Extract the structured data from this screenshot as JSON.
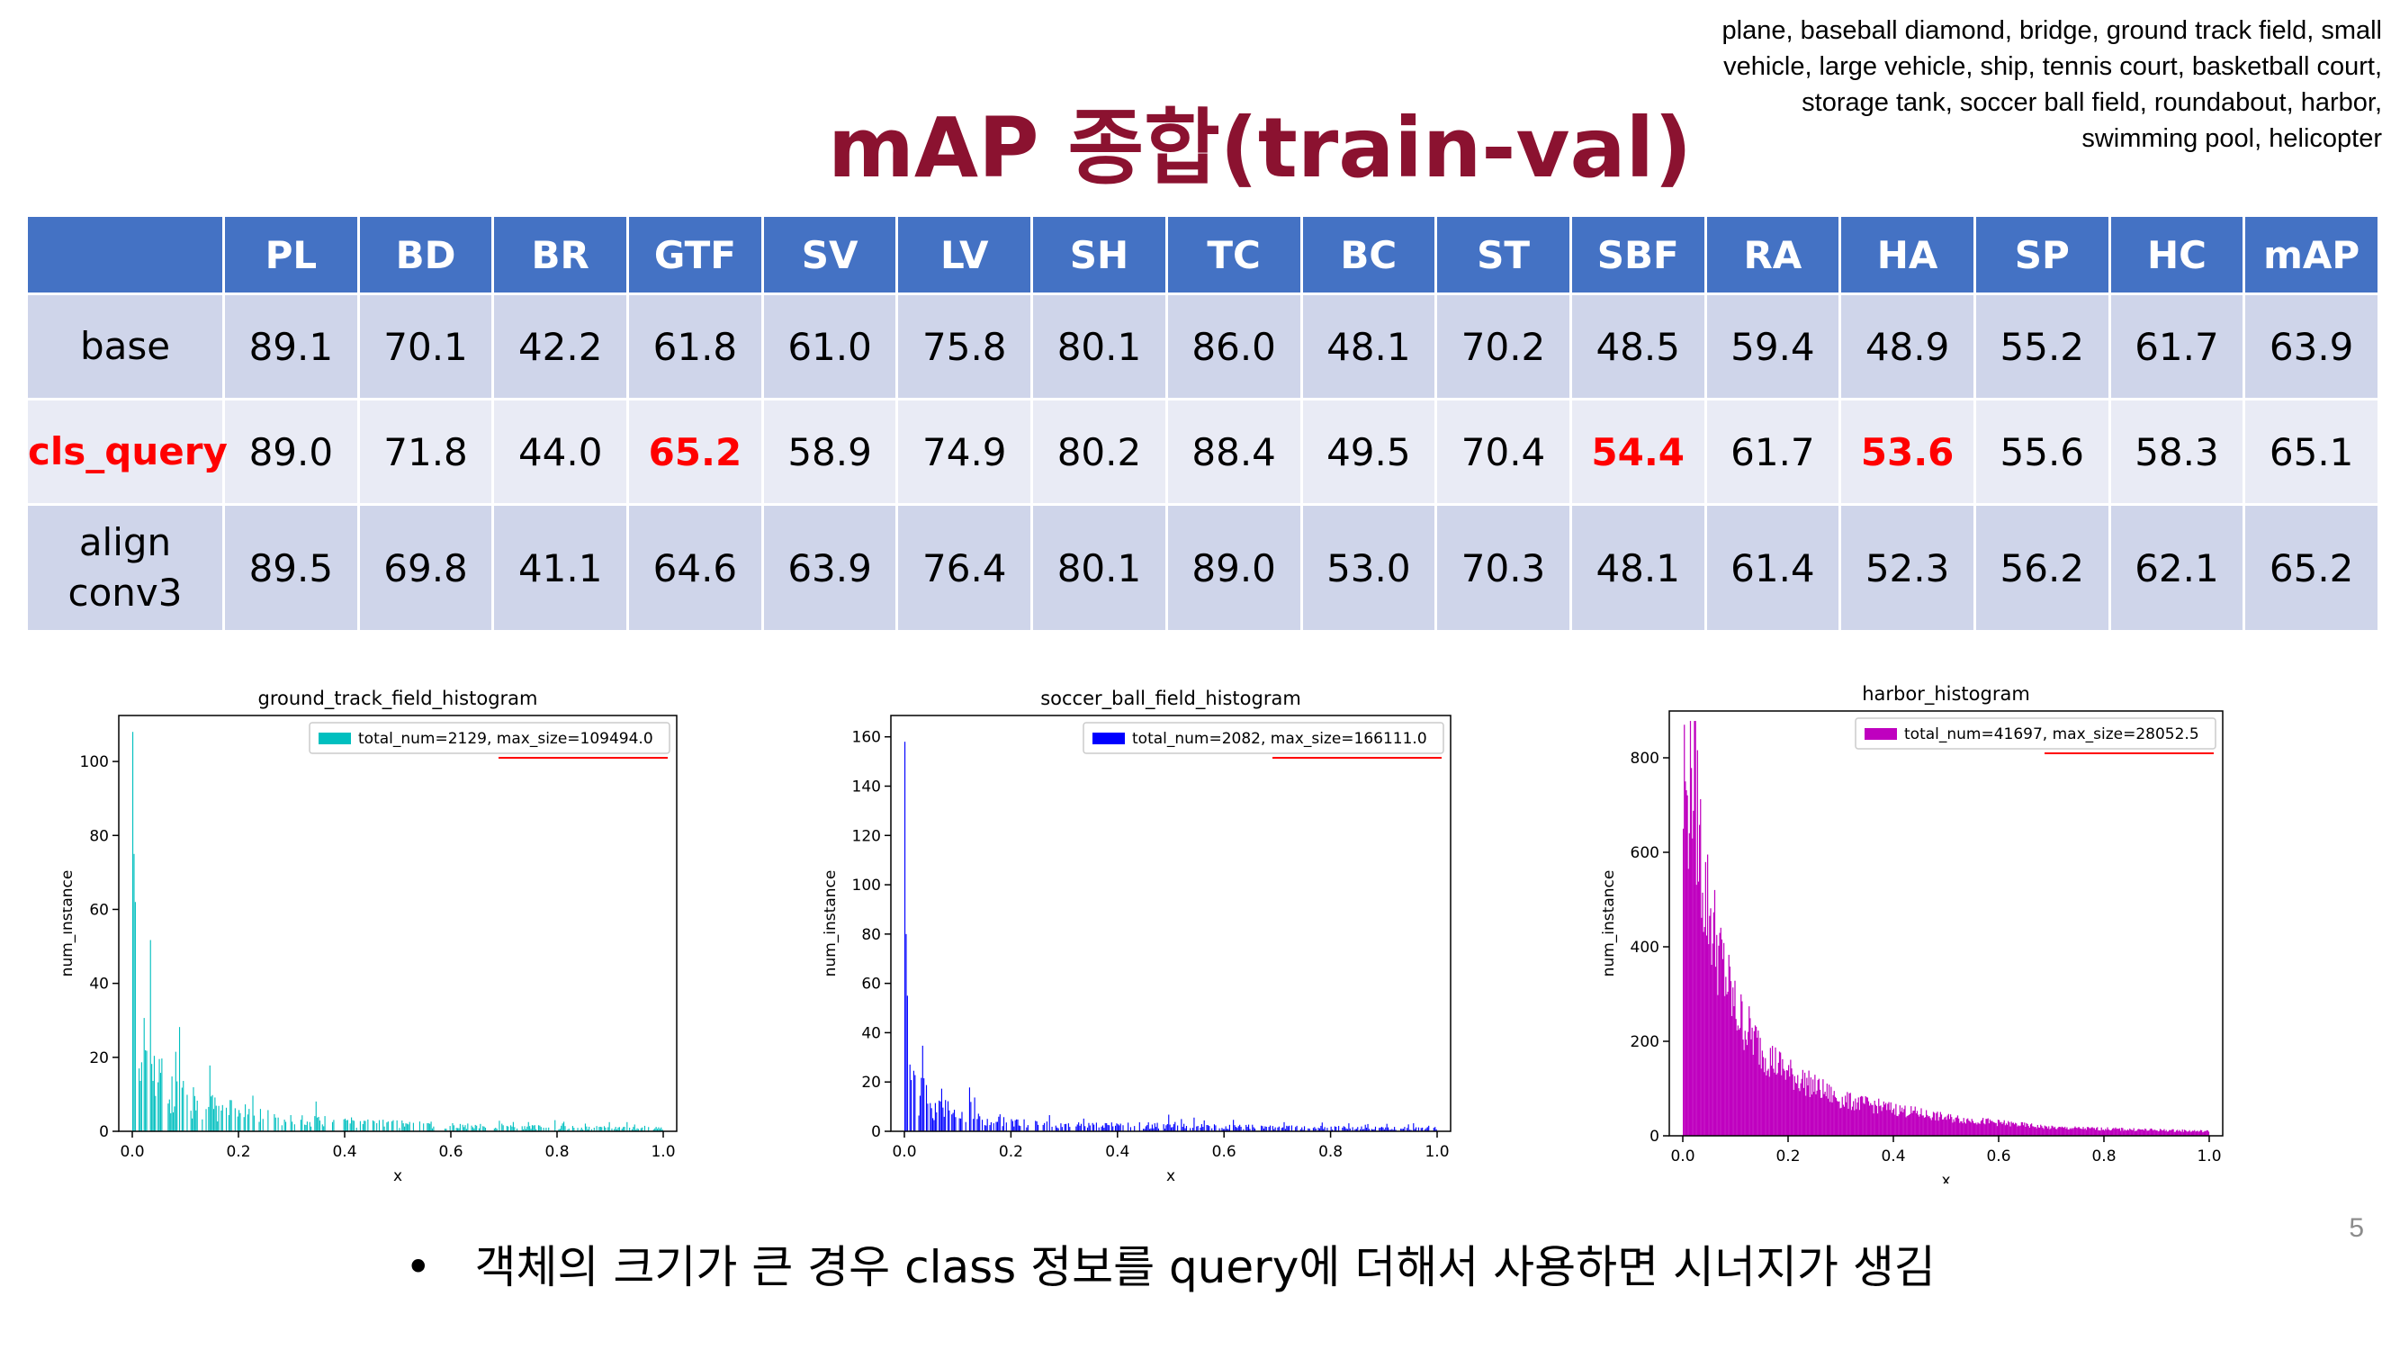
{
  "title": "mAP 종합(train-val)",
  "class_list": "plane, baseball diamond, bridge, ground track field, small vehicle, large vehicle, ship, tennis court, basketball court, storage tank, soccer ball field, roundabout, harbor, swimming pool, helicopter",
  "table": {
    "corner": "",
    "headers": [
      "PL",
      "BD",
      "BR",
      "GTF",
      "SV",
      "LV",
      "SH",
      "TC",
      "BC",
      "ST",
      "SBF",
      "RA",
      "HA",
      "SP",
      "HC",
      "mAP"
    ],
    "rows": [
      {
        "label": [
          "base"
        ],
        "label_color": "#000000",
        "values": [
          "89.1",
          "70.1",
          "42.2",
          "61.8",
          "61.0",
          "75.8",
          "80.1",
          "86.0",
          "48.1",
          "70.2",
          "48.5",
          "59.4",
          "48.9",
          "55.2",
          "61.7",
          "63.9"
        ],
        "highlight": []
      },
      {
        "label": [
          "cls_query"
        ],
        "label_color": "#ff0000",
        "values": [
          "89.0",
          "71.8",
          "44.0",
          "65.2",
          "58.9",
          "74.9",
          "80.2",
          "88.4",
          "49.5",
          "70.4",
          "54.4",
          "61.7",
          "53.6",
          "55.6",
          "58.3",
          "65.1"
        ],
        "highlight": [
          3,
          10,
          12
        ]
      },
      {
        "label": [
          "align",
          "conv3"
        ],
        "label_color": "#000000",
        "values": [
          "89.5",
          "69.8",
          "41.1",
          "64.6",
          "63.9",
          "76.4",
          "80.1",
          "89.0",
          "53.0",
          "70.3",
          "48.1",
          "61.4",
          "52.3",
          "56.2",
          "62.1",
          "65.2"
        ],
        "highlight": []
      }
    ]
  },
  "chart_data": [
    {
      "type": "bar",
      "title": "ground_track_field_histogram",
      "xlabel": "x",
      "ylabel": "num_instance",
      "legend": "total_num=2129, max_size=109494.0",
      "legend_position": "top-right",
      "color": "#00bfbf",
      "xlim": [
        0,
        1.0
      ],
      "ylim": [
        0,
        110
      ],
      "xticks": [
        0.0,
        0.2,
        0.4,
        0.6,
        0.8,
        1.0
      ],
      "xtick_labels": [
        "0.0",
        "0.2",
        "0.4",
        "0.6",
        "0.8",
        "1.0"
      ],
      "yticks": [
        0,
        20,
        40,
        60,
        80,
        100
      ],
      "ytick_labels": [
        "0",
        "20",
        "40",
        "60",
        "80",
        "100"
      ],
      "peaks": [
        [
          0.005,
          108
        ],
        [
          0.012,
          75
        ],
        [
          0.02,
          62
        ],
        [
          0.03,
          48
        ],
        [
          0.05,
          35
        ],
        [
          0.1,
          22
        ],
        [
          0.2,
          13
        ],
        [
          0.3,
          8
        ],
        [
          0.5,
          5
        ],
        [
          0.7,
          3
        ],
        [
          1.0,
          2
        ]
      ]
    },
    {
      "type": "bar",
      "title": "soccer_ball_field_histogram",
      "xlabel": "x",
      "ylabel": "num_instance",
      "legend": "total_num=2082, max_size=166111.0",
      "legend_position": "top-right",
      "color": "#0000ff",
      "xlim": [
        0,
        1.0
      ],
      "ylim": [
        0,
        165
      ],
      "xticks": [
        0.0,
        0.2,
        0.4,
        0.6,
        0.8,
        1.0
      ],
      "xtick_labels": [
        "0.0",
        "0.2",
        "0.4",
        "0.6",
        "0.8",
        "1.0"
      ],
      "yticks": [
        0,
        20,
        40,
        60,
        80,
        100,
        120,
        140,
        160
      ],
      "ytick_labels": [
        "0",
        "20",
        "40",
        "60",
        "80",
        "100",
        "120",
        "140",
        "160"
      ],
      "peaks": [
        [
          0.002,
          158
        ],
        [
          0.008,
          80
        ],
        [
          0.015,
          55
        ],
        [
          0.03,
          38
        ],
        [
          0.06,
          25
        ],
        [
          0.1,
          18
        ],
        [
          0.2,
          10
        ],
        [
          0.3,
          7
        ],
        [
          0.5,
          6
        ],
        [
          0.7,
          4
        ],
        [
          1.0,
          3
        ]
      ]
    },
    {
      "type": "bar",
      "title": "harbor_histogram",
      "xlabel": "x",
      "ylabel": "num_instance",
      "legend": "total_num=41697, max_size=28052.5",
      "legend_position": "top-right",
      "color": "#bf00bf",
      "xlim": [
        0,
        1.0
      ],
      "ylim": [
        0,
        880
      ],
      "xticks": [
        0.0,
        0.2,
        0.4,
        0.6,
        0.8,
        1.0
      ],
      "xtick_labels": [
        "0.0",
        "0.2",
        "0.4",
        "0.6",
        "0.8",
        "1.0"
      ],
      "yticks": [
        0,
        200,
        400,
        600,
        800
      ],
      "ytick_labels": [
        "0",
        "200",
        "400",
        "600",
        "800"
      ],
      "peaks": [
        [
          0.005,
          650
        ],
        [
          0.015,
          870
        ],
        [
          0.025,
          750
        ],
        [
          0.04,
          560
        ],
        [
          0.07,
          400
        ],
        [
          0.1,
          280
        ],
        [
          0.15,
          190
        ],
        [
          0.2,
          140
        ],
        [
          0.3,
          80
        ],
        [
          0.5,
          40
        ],
        [
          0.7,
          18
        ],
        [
          1.0,
          10
        ]
      ]
    }
  ],
  "bullet_text": "객체의 크기가 큰 경우 class 정보를 query에 더해서 사용하면 시너지가 생김",
  "page_number": "5"
}
